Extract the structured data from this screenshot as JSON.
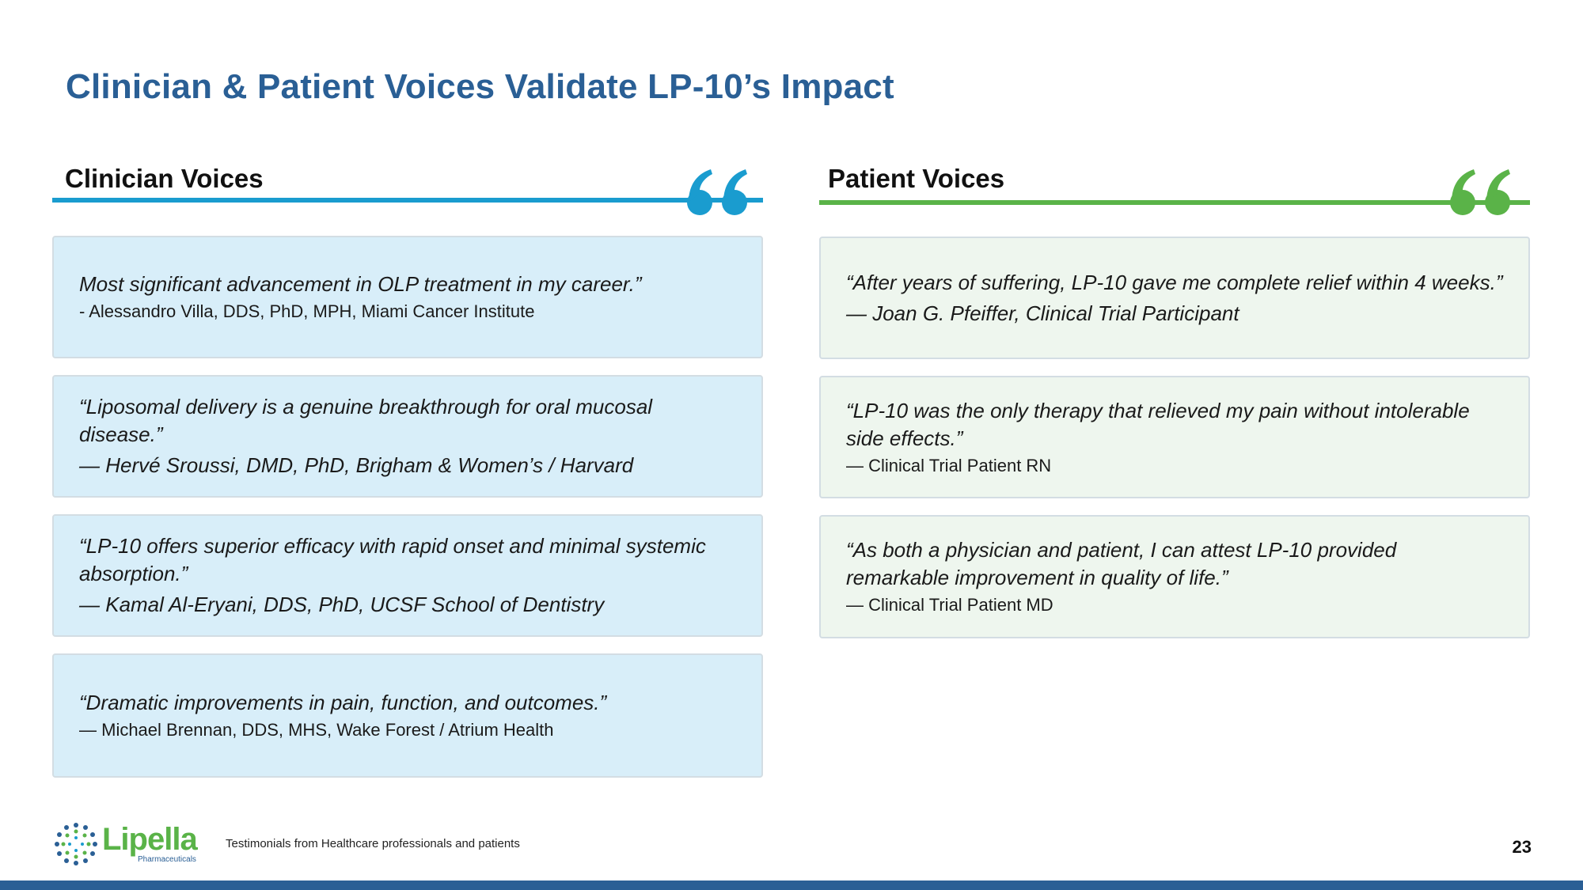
{
  "title": "Clinician & Patient Voices Validate LP-10’s Impact",
  "colors": {
    "title": "#2a5f95",
    "clinician_accent": "#1a9ccf",
    "patient_accent": "#5ab348",
    "clinician_card": "#d8eef9",
    "patient_card": "#eef6ee"
  },
  "clinician": {
    "heading": "Clinician Voices",
    "quote_icon": "quote-icon",
    "quotes": [
      {
        "text": "Most significant advancement in OLP treatment in my career.”",
        "attribution": "- Alessandro Villa, DDS, PhD, MPH, Miami Cancer Institute"
      },
      {
        "text": "“Liposomal delivery is a genuine breakthrough for oral mucosal disease.”",
        "attribution": "— Hervé Sroussi, DMD, PhD, Brigham & Women’s / Harvard"
      },
      {
        "text": "“LP-10 offers superior efficacy with rapid onset and minimal systemic absorption.”",
        "attribution": "— Kamal Al-Eryani, DDS, PhD, UCSF School of Dentistry"
      },
      {
        "text": "“Dramatic improvements in pain, function, and outcomes.”",
        "attribution": "— Michael Brennan, DDS, MHS, Wake Forest / Atrium Health"
      }
    ]
  },
  "patient": {
    "heading": "Patient Voices",
    "quote_icon": "quote-icon",
    "quotes": [
      {
        "text": "“After years of suffering, LP-10 gave me complete relief within 4 weeks.”",
        "attribution": "— Joan G. Pfeiffer, Clinical Trial Participant"
      },
      {
        "text": "“LP-10 was the only therapy that relieved my pain without intolerable side effects.”",
        "attribution": "— Clinical Trial Patient RN"
      },
      {
        "text": "“As both a physician and patient, I can attest LP-10 provided remarkable improvement in quality of life.”",
        "attribution": "— Clinical Trial Patient MD"
      }
    ]
  },
  "footer": {
    "logo_word": "Lipella",
    "logo_sub": "Pharmaceuticals",
    "note": "Testimonials from Healthcare professionals and patients",
    "page_number": "23"
  }
}
